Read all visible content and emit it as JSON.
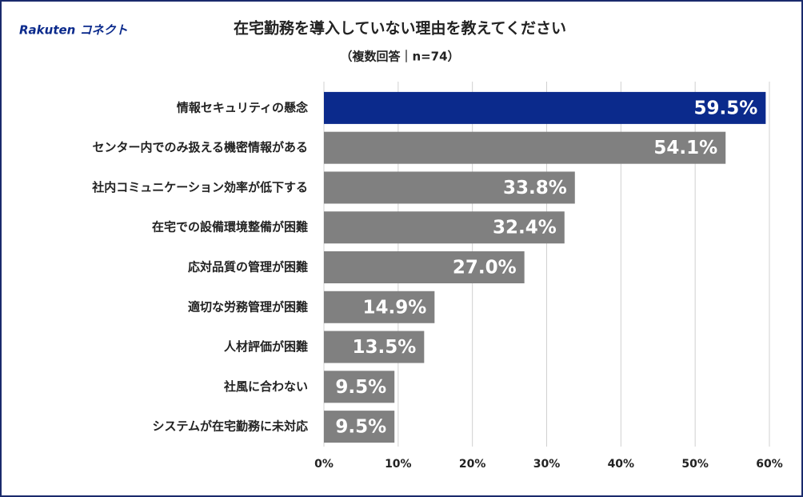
{
  "chart_data": {
    "type": "bar",
    "orientation": "horizontal",
    "logo": "Rakuten コネクト",
    "title": "在宅勤務を導入していない理由を教えてください",
    "subtitle": "（複数回答｜n=74）",
    "categories": [
      "情報セキュリティの懸念",
      "センター内でのみ扱える機密情報がある",
      "社内コミュニケーション効率が低下する",
      "在宅での設備環境整備が困難",
      "応対品質の管理が困難",
      "適切な労務管理が困難",
      "人材評価が困難",
      "社風に合わない",
      "システムが在宅勤務に未対応"
    ],
    "values": [
      59.5,
      54.1,
      33.8,
      32.4,
      27.0,
      14.9,
      13.5,
      9.5,
      9.5
    ],
    "value_labels": [
      "59.5%",
      "54.1%",
      "33.8%",
      "32.4%",
      "27.0%",
      "14.9%",
      "13.5%",
      "9.5%",
      "9.5%"
    ],
    "colors": [
      "#0b2a8c",
      "#808080",
      "#808080",
      "#808080",
      "#808080",
      "#808080",
      "#808080",
      "#808080",
      "#808080"
    ],
    "xlim": [
      0,
      60
    ],
    "xticks": [
      {
        "value": 0,
        "label": "0%"
      },
      {
        "value": 10,
        "label": "10%"
      },
      {
        "value": 20,
        "label": "20%"
      },
      {
        "value": 30,
        "label": "30%"
      },
      {
        "value": 40,
        "label": "40%"
      },
      {
        "value": 50,
        "label": "50%"
      },
      {
        "value": 60,
        "label": "60%"
      }
    ],
    "grid": true
  }
}
